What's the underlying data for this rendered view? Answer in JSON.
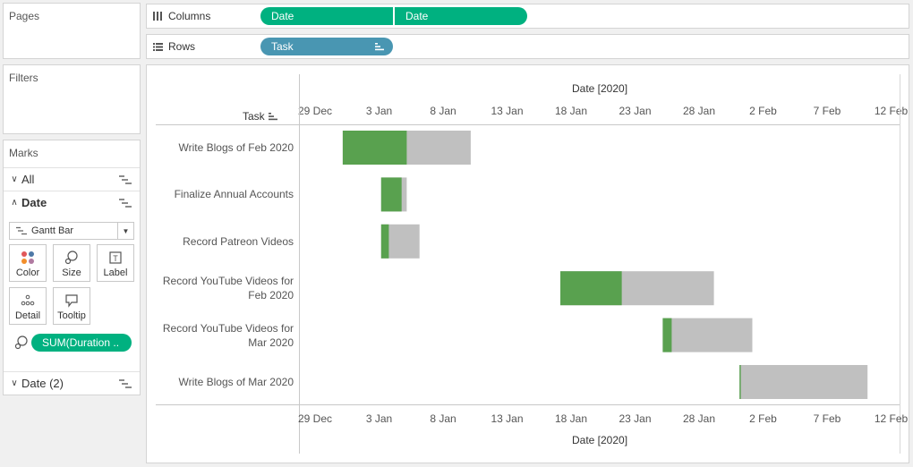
{
  "pages": {
    "title": "Pages"
  },
  "filters": {
    "title": "Filters"
  },
  "marks": {
    "title": "Marks",
    "all_label": "All",
    "date_label": "Date",
    "mark_type": "Gantt Bar",
    "buttons": {
      "color": "Color",
      "size": "Size",
      "label": "Label",
      "detail": "Detail",
      "tooltip": "Tooltip"
    },
    "size_pill": "SUM(Duration ..",
    "date2_label": "Date (2)"
  },
  "shelves": {
    "columns_label": "Columns",
    "columns_pills": [
      "Date",
      "Date"
    ],
    "rows_label": "Rows",
    "rows_pill": "Task"
  },
  "colors": {
    "green": "#59a14f",
    "gray": "#c0c0c0",
    "pill_green": "#00b180",
    "pill_blue": "#4996b2"
  },
  "chart_data": {
    "type": "gantt",
    "x_title": "Date [2020]",
    "row_header": "Task",
    "x_ticks": [
      "29 Dec",
      "3 Jan",
      "8 Jan",
      "13 Jan",
      "18 Jan",
      "23 Jan",
      "28 Jan",
      "2 Feb",
      "7 Feb",
      "12 Feb"
    ],
    "x_range": [
      "2019-12-29",
      "2020-02-12"
    ],
    "tasks": [
      {
        "label": "Write Blogs of Feb 2020",
        "start": "2020-01-01",
        "green_end": "2020-01-06",
        "end": "2020-01-11"
      },
      {
        "label": "Finalize Annual Accounts",
        "start": "2020-01-04",
        "green_end": "2020-01-05.6",
        "end": "2020-01-06"
      },
      {
        "label": "Record Patreon Videos",
        "start": "2020-01-04",
        "green_end": "2020-01-04.6",
        "end": "2020-01-07"
      },
      {
        "label": "Record YouTube Videos for Feb 2020",
        "start": "2020-01-18",
        "green_end": "2020-01-22.8",
        "end": "2020-01-30"
      },
      {
        "label": "Record YouTube Videos for Mar 2020",
        "start": "2020-01-26",
        "green_end": "2020-01-26.7",
        "end": "2020-02-02"
      },
      {
        "label": "Write Blogs of Mar 2020",
        "start": "2020-02-01",
        "green_end": "2020-02-01.1",
        "end": "2020-02-11"
      }
    ]
  }
}
